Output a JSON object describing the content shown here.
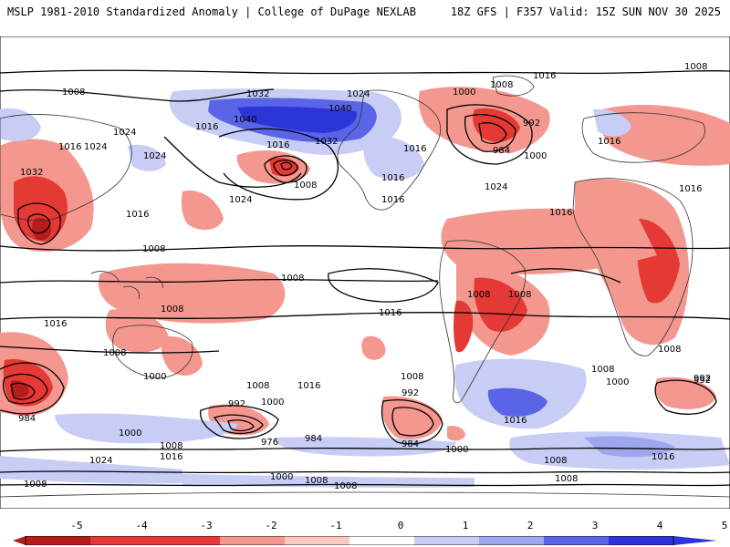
{
  "header": {
    "title_left": "MSLP 1981-2010 Standardized Anomaly | College of DuPage NEXLAB",
    "title_right": "18Z GFS | F357 Valid: 15Z SUN NOV 30 2025"
  },
  "colors": {
    "strong_negative": "#b71c1c",
    "mid_negative": "#e53935",
    "weak_negative": "#f4978e",
    "light_negative": "#fbc9c0",
    "neutral": "#ffffff",
    "light_positive": "#c8cdf6",
    "weak_positive": "#9ea6ee",
    "mid_positive": "#5964e6",
    "strong_positive": "#2b35d8",
    "land_outline": "#333333",
    "contour": "#000000"
  },
  "colorbar": {
    "ticks": [
      "-5",
      "-4",
      "-3",
      "-2",
      "-1",
      "0",
      "1",
      "2",
      "3",
      "4",
      "5"
    ]
  },
  "contour_labels": [
    "1016",
    "1008",
    "1024",
    "1008",
    "1032",
    "1000",
    "1008",
    "1032",
    "1016",
    "1040",
    "1040",
    "992",
    "984",
    "1000",
    "1016",
    "1024",
    "1016",
    "1032",
    "1016",
    "1024",
    "1016",
    "1024",
    "1008",
    "1024",
    "1016",
    "1024",
    "1016",
    "1016",
    "1016",
    "1016",
    "1008",
    "1008",
    "1008",
    "1008",
    "1008",
    "1008",
    "1008",
    "1016",
    "1016",
    "1000",
    "1008",
    "1008",
    "1008",
    "1016",
    "1000",
    "992",
    "1000",
    "992",
    "992",
    "984",
    "976",
    "984",
    "984",
    "1000",
    "1008",
    "1016",
    "1000",
    "1024",
    "1008",
    "1008",
    "1000",
    "1016",
    "1008",
    "992",
    "1016",
    "1008",
    "1008"
  ]
}
